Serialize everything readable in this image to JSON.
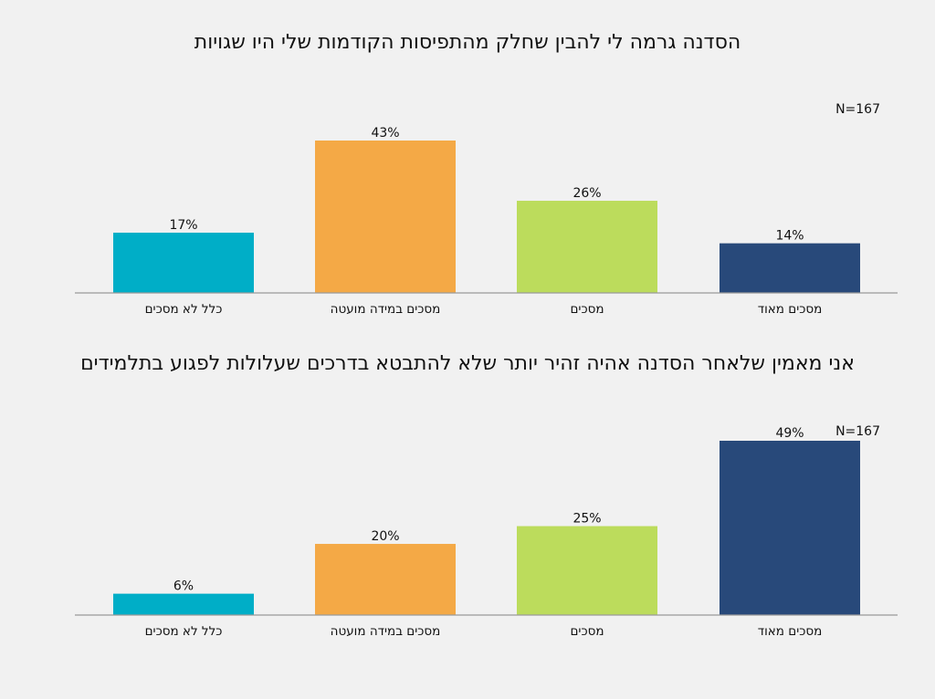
{
  "colors": {
    "background": "#f1f1f1",
    "bar_colors": [
      "#00aec7",
      "#f4a946",
      "#bcdc5c",
      "#28497a"
    ]
  },
  "chart_data": [
    {
      "type": "bar",
      "title": "הסדנה גרמה לי להבין שחלק מהתפיסות הקודמות שלי היו שגויות",
      "annotation": "N=167",
      "categories": [
        "כלל לא מסכים",
        "מסכים במידה מועטה",
        "מסכים",
        "מסכים מאוד"
      ],
      "values": [
        17,
        43,
        26,
        14
      ],
      "value_labels": [
        "17%",
        "43%",
        "26%",
        "14%"
      ],
      "value_unit": "%",
      "ylim": [
        0,
        43
      ],
      "grid": false,
      "legend": "none"
    },
    {
      "type": "bar",
      "title": "אני מאמין שלאחר הסדנה אהיה זהיר יותר שלא להתבטא בדרכים שעלולות לפגוע בתלמידים",
      "annotation": "N=167",
      "categories": [
        "כלל לא מסכים",
        "מסכים במידה מועטה",
        "מסכים",
        "מסכים מאוד"
      ],
      "values": [
        6,
        20,
        25,
        49
      ],
      "value_labels": [
        "6%",
        "20%",
        "25%",
        "49%"
      ],
      "value_unit": "%",
      "ylim": [
        0,
        49
      ],
      "grid": false,
      "legend": "none"
    }
  ]
}
